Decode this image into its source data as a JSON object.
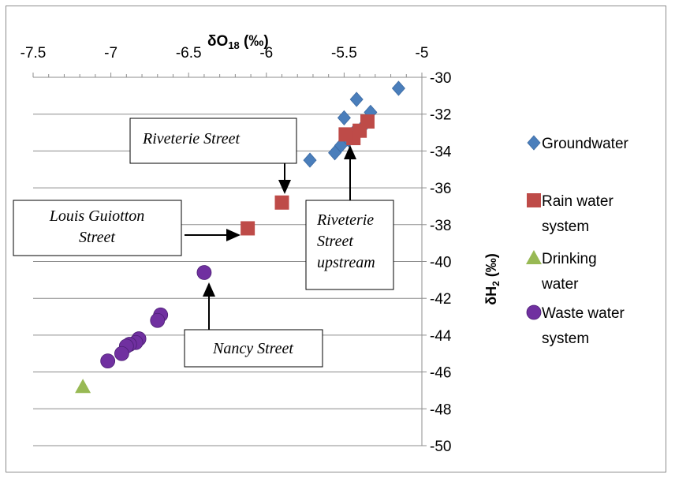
{
  "chart_data": {
    "type": "scatter",
    "x_axis": {
      "label_main": "δO",
      "label_sub": "18",
      "label_unit": " (‰)",
      "min": -7.5,
      "max": -5,
      "ticks": [
        "-7.5",
        "-7",
        "-6.5",
        "-6",
        "-5.5",
        "-5"
      ],
      "position": "top",
      "reversed": false
    },
    "y_axis": {
      "label_main": "δH",
      "label_sub": "2",
      "label_unit": " (‰)",
      "min": -50,
      "max": -30,
      "ticks": [
        "-30",
        "-32",
        "-34",
        "-36",
        "-38",
        "-40",
        "-42",
        "-44",
        "-46",
        "-48",
        "-50"
      ],
      "position": "right"
    },
    "grid": "horizontal",
    "legend_position": "right",
    "series": [
      {
        "name": "Groundwater",
        "marker": "diamond",
        "color": "#4a7ebb",
        "points": [
          [
            -5.15,
            -30.6
          ],
          [
            -5.42,
            -31.2
          ],
          [
            -5.33,
            -31.9
          ],
          [
            -5.5,
            -32.2
          ],
          [
            -5.44,
            -33.0
          ],
          [
            -5.47,
            -33.4
          ],
          [
            -5.52,
            -33.7
          ],
          [
            -5.56,
            -34.1
          ],
          [
            -5.72,
            -34.5
          ],
          [
            -5.36,
            -32.5
          ]
        ]
      },
      {
        "name": "Rain water system",
        "marker": "square",
        "color": "#be4b48",
        "points": [
          [
            -5.35,
            -32.4
          ],
          [
            -5.4,
            -32.9
          ],
          [
            -5.44,
            -33.3
          ],
          [
            -5.49,
            -33.1
          ],
          [
            -5.9,
            -36.8
          ],
          [
            -6.12,
            -38.2
          ]
        ]
      },
      {
        "name": "Drinking water",
        "marker": "triangle",
        "color": "#98b954",
        "points": [
          [
            -7.18,
            -46.8
          ]
        ]
      },
      {
        "name": "Waste water system",
        "marker": "circle",
        "color": "#7030a0",
        "points": [
          [
            -6.4,
            -40.6
          ],
          [
            -6.68,
            -42.9
          ],
          [
            -6.7,
            -43.2
          ],
          [
            -6.82,
            -44.2
          ],
          [
            -6.84,
            -44.4
          ],
          [
            -6.88,
            -44.5
          ],
          [
            -6.9,
            -44.6
          ],
          [
            -6.93,
            -45.0
          ],
          [
            -7.02,
            -45.4
          ]
        ]
      }
    ],
    "legend": [
      {
        "label": [
          "Groundwater"
        ],
        "marker": "diamond",
        "color": "#4a7ebb"
      },
      {
        "label": [
          "Rain water",
          "system"
        ],
        "marker": "square",
        "color": "#be4b48"
      },
      {
        "label": [
          "Drinking",
          "water"
        ],
        "marker": "triangle",
        "color": "#98b954"
      },
      {
        "label": [
          "Waste water",
          "system"
        ],
        "marker": "circle",
        "color": "#7030a0"
      }
    ],
    "annotations": [
      {
        "name": "riveterie-street",
        "lines": [
          "Riveterie Street"
        ]
      },
      {
        "name": "louis-guiotton-street",
        "lines": [
          "Louis  Guiotton",
          "Street"
        ]
      },
      {
        "name": "riveterie-street-upstream",
        "lines": [
          "Riveterie",
          "Street",
          "upstream"
        ]
      },
      {
        "name": "nancy-street",
        "lines": [
          "Nancy Street"
        ]
      }
    ]
  }
}
